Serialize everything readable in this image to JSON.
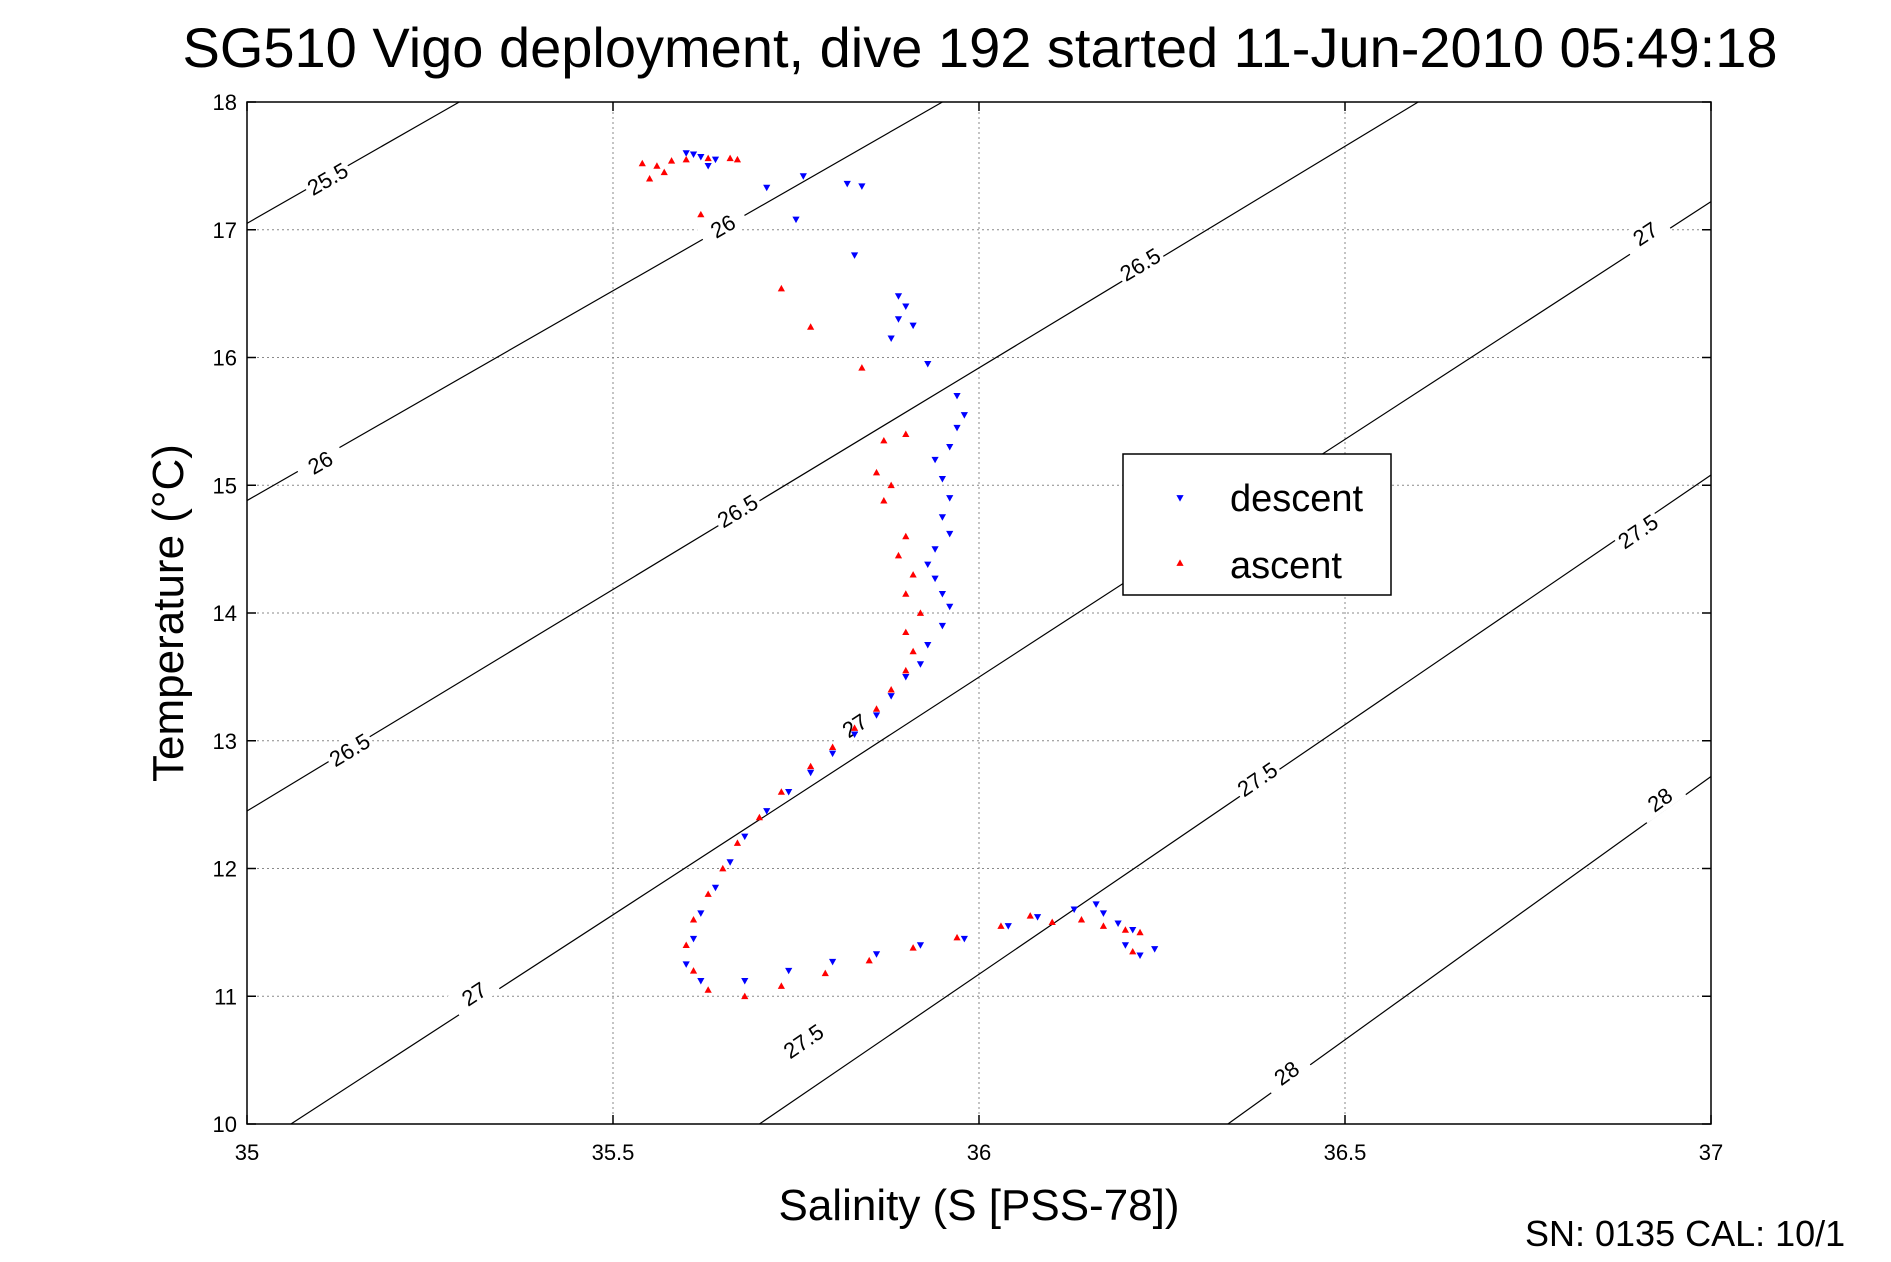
{
  "colors": {
    "descent": "#0000ff",
    "ascent": "#ff0000",
    "axis": "#000000",
    "grid": "#8a8a8a"
  },
  "footer": "SN: 0135  CAL: 10/1",
  "chart_data": {
    "type": "scatter",
    "title": "SG510 Vigo deployment, dive 192 started 11-Jun-2010 05:49:18",
    "xlabel": "Salinity (S [PSS-78])",
    "ylabel": "Temperature (°C)",
    "xlim": [
      35,
      37
    ],
    "ylim": [
      10,
      18
    ],
    "xticks": [
      35,
      35.5,
      36,
      36.5,
      37
    ],
    "xtick_labels": [
      "35",
      "35.5",
      "36",
      "36.5",
      "37"
    ],
    "yticks": [
      10,
      11,
      12,
      13,
      14,
      15,
      16,
      17,
      18
    ],
    "ytick_labels": [
      "10",
      "11",
      "12",
      "13",
      "14",
      "15",
      "16",
      "17",
      "18"
    ],
    "grid": true,
    "legend": {
      "placement": "center-right"
    },
    "contours": [
      {
        "level": 25.5,
        "points": [
          [
            35.0,
            17.05
          ],
          [
            35.29,
            18.0
          ]
        ],
        "labels": [
          {
            "text": "25.5",
            "x": 35.11,
            "y": 17.4
          }
        ]
      },
      {
        "level": 26.0,
        "points": [
          [
            35.0,
            14.88
          ],
          [
            35.95,
            18.0
          ]
        ],
        "labels": [
          {
            "text": "26",
            "x": 35.1,
            "y": 15.18
          },
          {
            "text": "26",
            "x": 35.65,
            "y": 17.03
          }
        ]
      },
      {
        "level": 26.5,
        "points": [
          [
            35.0,
            12.45
          ],
          [
            36.6,
            18.0
          ]
        ],
        "labels": [
          {
            "text": "26.5",
            "x": 35.14,
            "y": 12.93
          },
          {
            "text": "26.5",
            "x": 35.67,
            "y": 14.8
          },
          {
            "text": "26.5",
            "x": 36.22,
            "y": 16.73
          }
        ]
      },
      {
        "level": 27.0,
        "points": [
          [
            35.06,
            10.0
          ],
          [
            37.0,
            17.22
          ]
        ],
        "labels": [
          {
            "text": "27",
            "x": 35.31,
            "y": 11.02
          },
          {
            "text": "27",
            "x": 35.83,
            "y": 13.12
          },
          {
            "text": "27",
            "x": 36.91,
            "y": 16.97
          }
        ]
      },
      {
        "level": 27.5,
        "points": [
          [
            35.7,
            10.0
          ],
          [
            37.0,
            15.08
          ]
        ],
        "labels": [
          {
            "text": "27.5",
            "x": 35.76,
            "y": 10.65
          },
          {
            "text": "27.5",
            "x": 36.38,
            "y": 12.7
          },
          {
            "text": "27.5",
            "x": 36.9,
            "y": 14.64
          }
        ]
      },
      {
        "level": 28.0,
        "points": [
          [
            36.34,
            10.0
          ],
          [
            37.0,
            12.72
          ]
        ],
        "labels": [
          {
            "text": "28",
            "x": 36.42,
            "y": 10.4
          },
          {
            "text": "28",
            "x": 36.93,
            "y": 12.54
          }
        ]
      }
    ],
    "series": [
      {
        "name": "descent",
        "marker": "triangle-down",
        "points": [
          [
            35.6,
            17.6
          ],
          [
            35.61,
            17.59
          ],
          [
            35.62,
            17.57
          ],
          [
            35.64,
            17.55
          ],
          [
            35.63,
            17.5
          ],
          [
            35.76,
            17.42
          ],
          [
            35.82,
            17.36
          ],
          [
            35.84,
            17.34
          ],
          [
            35.71,
            17.33
          ],
          [
            35.75,
            17.08
          ],
          [
            35.83,
            16.8
          ],
          [
            35.89,
            16.48
          ],
          [
            35.9,
            16.4
          ],
          [
            35.89,
            16.3
          ],
          [
            35.91,
            16.25
          ],
          [
            35.88,
            16.15
          ],
          [
            35.93,
            15.95
          ],
          [
            35.97,
            15.7
          ],
          [
            35.98,
            15.55
          ],
          [
            35.97,
            15.45
          ],
          [
            35.96,
            15.3
          ],
          [
            35.94,
            15.2
          ],
          [
            35.95,
            15.05
          ],
          [
            35.96,
            14.9
          ],
          [
            35.95,
            14.75
          ],
          [
            35.96,
            14.62
          ],
          [
            35.94,
            14.5
          ],
          [
            35.93,
            14.38
          ],
          [
            35.94,
            14.27
          ],
          [
            35.95,
            14.15
          ],
          [
            35.96,
            14.05
          ],
          [
            35.95,
            13.9
          ],
          [
            35.93,
            13.75
          ],
          [
            35.92,
            13.6
          ],
          [
            35.9,
            13.5
          ],
          [
            35.88,
            13.35
          ],
          [
            35.86,
            13.2
          ],
          [
            35.83,
            13.05
          ],
          [
            35.8,
            12.9
          ],
          [
            35.77,
            12.75
          ],
          [
            35.74,
            12.6
          ],
          [
            35.71,
            12.45
          ],
          [
            35.68,
            12.25
          ],
          [
            35.66,
            12.05
          ],
          [
            35.64,
            11.85
          ],
          [
            35.62,
            11.65
          ],
          [
            35.61,
            11.45
          ],
          [
            35.6,
            11.25
          ],
          [
            35.62,
            11.12
          ],
          [
            35.68,
            11.12
          ],
          [
            35.74,
            11.2
          ],
          [
            35.8,
            11.27
          ],
          [
            35.86,
            11.33
          ],
          [
            35.92,
            11.4
          ],
          [
            35.98,
            11.45
          ],
          [
            36.04,
            11.55
          ],
          [
            36.08,
            11.62
          ],
          [
            36.13,
            11.68
          ],
          [
            36.16,
            11.72
          ],
          [
            36.17,
            11.65
          ],
          [
            36.19,
            11.57
          ],
          [
            36.21,
            11.52
          ],
          [
            36.2,
            11.4
          ],
          [
            36.22,
            11.32
          ],
          [
            36.24,
            11.37
          ]
        ]
      },
      {
        "name": "ascent",
        "marker": "triangle-up",
        "points": [
          [
            35.54,
            17.52
          ],
          [
            35.56,
            17.5
          ],
          [
            35.57,
            17.45
          ],
          [
            35.58,
            17.54
          ],
          [
            35.6,
            17.55
          ],
          [
            35.63,
            17.56
          ],
          [
            35.66,
            17.56
          ],
          [
            35.67,
            17.55
          ],
          [
            35.55,
            17.4
          ],
          [
            35.62,
            17.12
          ],
          [
            35.73,
            16.54
          ],
          [
            35.77,
            16.24
          ],
          [
            35.84,
            15.92
          ],
          [
            35.87,
            15.35
          ],
          [
            35.9,
            15.4
          ],
          [
            35.86,
            15.1
          ],
          [
            35.88,
            15.0
          ],
          [
            35.87,
            14.88
          ],
          [
            35.9,
            14.6
          ],
          [
            35.89,
            14.45
          ],
          [
            35.91,
            14.3
          ],
          [
            35.9,
            14.15
          ],
          [
            35.92,
            14.0
          ],
          [
            35.9,
            13.85
          ],
          [
            35.91,
            13.7
          ],
          [
            35.9,
            13.55
          ],
          [
            35.88,
            13.4
          ],
          [
            35.86,
            13.25
          ],
          [
            35.83,
            13.1
          ],
          [
            35.8,
            12.95
          ],
          [
            35.77,
            12.8
          ],
          [
            35.73,
            12.6
          ],
          [
            35.7,
            12.4
          ],
          [
            35.67,
            12.2
          ],
          [
            35.65,
            12.0
          ],
          [
            35.63,
            11.8
          ],
          [
            35.61,
            11.6
          ],
          [
            35.6,
            11.4
          ],
          [
            35.61,
            11.2
          ],
          [
            35.63,
            11.05
          ],
          [
            35.68,
            11.0
          ],
          [
            35.73,
            11.08
          ],
          [
            35.79,
            11.18
          ],
          [
            35.85,
            11.28
          ],
          [
            35.91,
            11.38
          ],
          [
            35.97,
            11.46
          ],
          [
            36.03,
            11.55
          ],
          [
            36.07,
            11.63
          ],
          [
            36.1,
            11.58
          ],
          [
            36.14,
            11.6
          ],
          [
            36.17,
            11.55
          ],
          [
            36.2,
            11.52
          ],
          [
            36.22,
            11.5
          ],
          [
            36.21,
            11.35
          ]
        ]
      }
    ]
  }
}
